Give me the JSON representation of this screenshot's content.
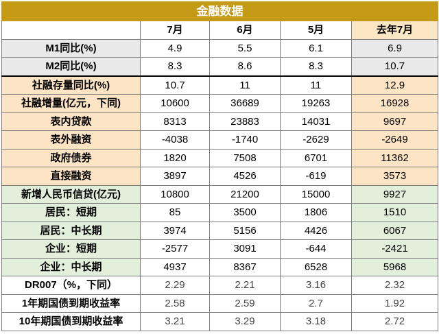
{
  "title": "金融数据",
  "columns": [
    "",
    "7月",
    "6月",
    "5月",
    "去年7月"
  ],
  "rows": [
    {
      "label": "M1同比(%)",
      "group": "grey",
      "values": [
        "4.9",
        "5.5",
        "6.1",
        "6.9"
      ]
    },
    {
      "label": "M2同比(%)",
      "group": "grey",
      "values": [
        "8.3",
        "8.6",
        "8.3",
        "10.7"
      ]
    },
    {
      "label": "社融存量同比(%)",
      "group": "orange",
      "values": [
        "10.7",
        "11",
        "11",
        "12.9"
      ]
    },
    {
      "label": "社融增量(亿元，下同)",
      "group": "orange",
      "values": [
        "10600",
        "36689",
        "19263",
        "16928"
      ]
    },
    {
      "label": "表内贷款",
      "group": "orange",
      "values": [
        "8313",
        "23883",
        "14031",
        "9697"
      ]
    },
    {
      "label": "表外融资",
      "group": "orange",
      "values": [
        "-4038",
        "-1740",
        "-2629",
        "-2649"
      ]
    },
    {
      "label": "政府债券",
      "group": "orange",
      "values": [
        "1820",
        "7508",
        "6701",
        "11362"
      ]
    },
    {
      "label": "直接融资",
      "group": "orange",
      "values": [
        "3897",
        "4526",
        "-619",
        "3573"
      ]
    },
    {
      "label": "新增人民币信贷(亿元)",
      "group": "green",
      "values": [
        "10800",
        "21200",
        "15000",
        "9927"
      ]
    },
    {
      "label": "居民：短期",
      "group": "green",
      "values": [
        "85",
        "3500",
        "1806",
        "1510"
      ]
    },
    {
      "label": "居民：中长期",
      "group": "green",
      "values": [
        "3974",
        "5156",
        "4426",
        "6067"
      ]
    },
    {
      "label": "企业：短期",
      "group": "green",
      "values": [
        "-2577",
        "3091",
        "-644",
        "-2421"
      ]
    },
    {
      "label": "企业：中长期",
      "group": "green",
      "values": [
        "4937",
        "8367",
        "6528",
        "5968"
      ]
    },
    {
      "label": "DR007（%，下同）",
      "group": "white",
      "values": [
        "2.29",
        "2.21",
        "3.16",
        "2.32"
      ]
    },
    {
      "label": "1年期国债到期收益率",
      "group": "white",
      "values": [
        "2.58",
        "2.59",
        "2.7",
        "1.92"
      ]
    },
    {
      "label": "10年期国债到期收益率",
      "group": "white",
      "values": [
        "3.21",
        "3.29",
        "3.18",
        "2.72"
      ]
    }
  ]
}
